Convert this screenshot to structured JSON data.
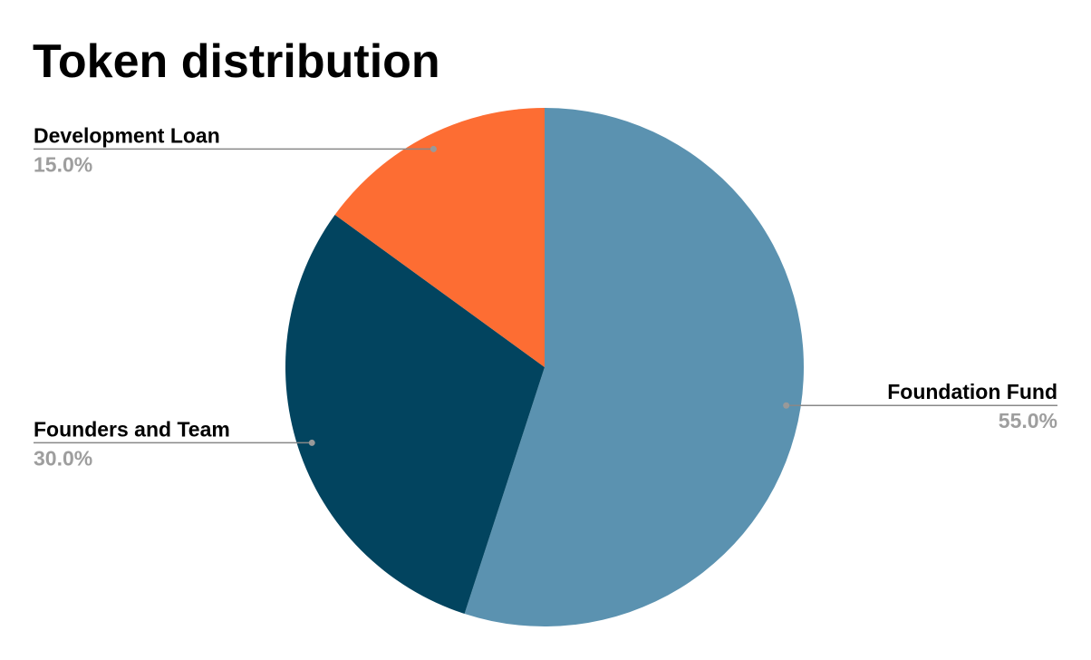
{
  "chart_data": {
    "type": "pie",
    "title": "Token distribution",
    "categories": [
      "Foundation Fund",
      "Founders and Team",
      "Development Loan"
    ],
    "values": [
      55,
      30,
      15
    ],
    "value_labels": [
      "55.0%",
      "30.0%",
      "15.0%"
    ],
    "colors": [
      "#5b92b0",
      "#02445f",
      "#fd6d33"
    ]
  }
}
